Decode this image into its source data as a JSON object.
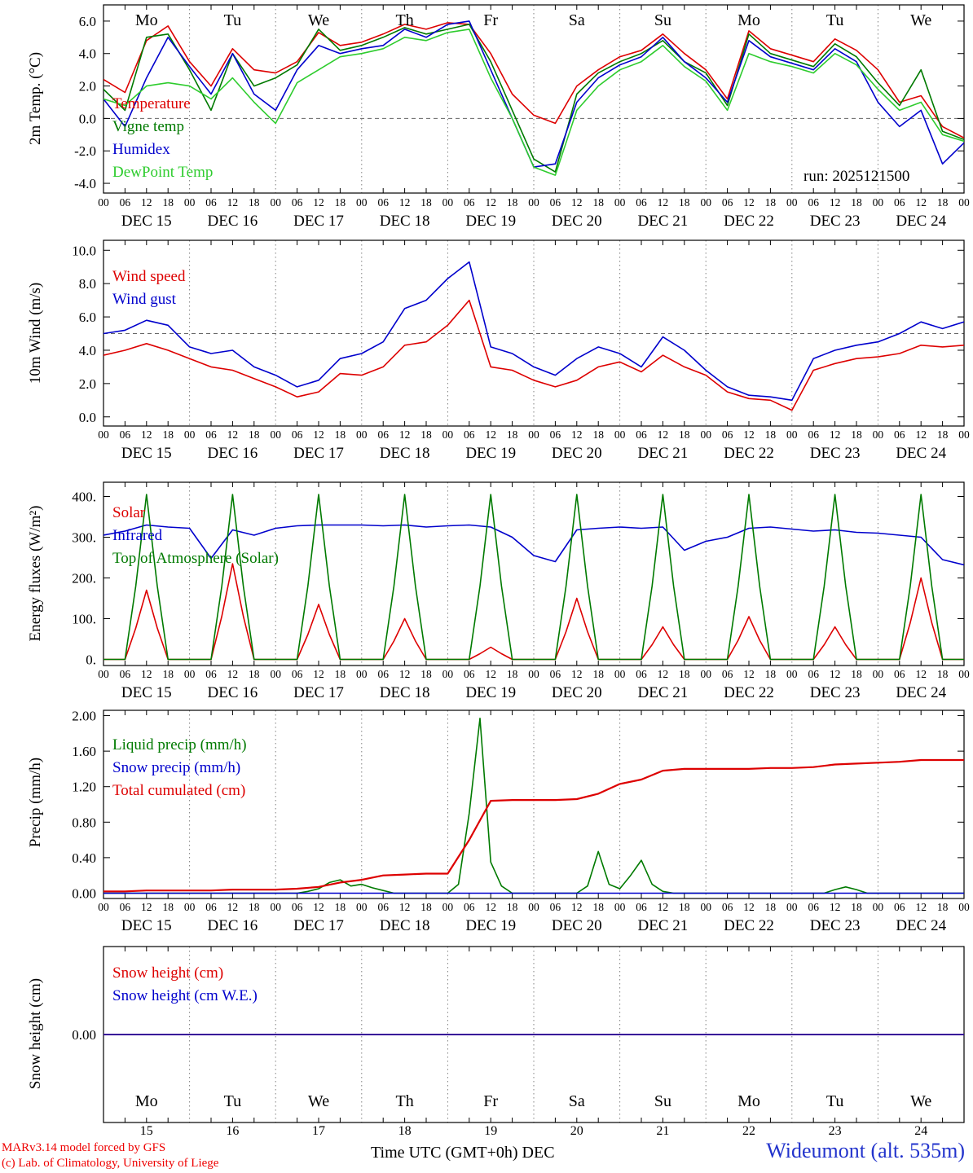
{
  "page": {
    "run_label": "run: 2025121500",
    "footer_left1": "MARv3.14 model forced by GFS",
    "footer_left2": "(c) Lab. of Climatology, University of Liege",
    "footer_center": "Time UTC (GMT+0h) DEC",
    "footer_right": "Wideumont (alt. 535m)"
  },
  "colors": {
    "red": "#dd0000",
    "dark_green": "#007a00",
    "blue": "#0000cc",
    "light_green": "#2ecc2e",
    "weekend": "#ee2200",
    "footer_blue": "#2233cc",
    "footer_red": "#ee0000"
  },
  "axis": {
    "hour_labels": [
      "00",
      "06",
      "12",
      "18"
    ],
    "day_labels": [
      "DEC 15",
      "DEC 16",
      "DEC 17",
      "DEC 18",
      "DEC 19",
      "DEC 20",
      "DEC 21",
      "DEC 22",
      "DEC 23",
      "DEC 24"
    ],
    "day_abbrev": [
      "Mo",
      "Tu",
      "We",
      "Th",
      "Fr",
      "Sa",
      "Su",
      "Mo",
      "Tu",
      "We"
    ],
    "weekend_indices": [
      5,
      6
    ],
    "dates": [
      "15",
      "16",
      "17",
      "18",
      "19",
      "20",
      "21",
      "22",
      "23",
      "24"
    ],
    "x_hours_span": 240
  },
  "chart_data": [
    {
      "type": "line",
      "ylabel": "2m Temp. (°C)",
      "ylim": [
        -4.6,
        7.0
      ],
      "yticks": [
        {
          "v": 6,
          "label": "6.0"
        },
        {
          "v": 4,
          "label": "4.0"
        },
        {
          "v": 2,
          "label": "2.0"
        },
        {
          "v": 0,
          "label": "0.0"
        },
        {
          "v": -2,
          "label": "-2.0"
        },
        {
          "v": -4,
          "label": "-4.0"
        }
      ],
      "dashed_hlines": [
        0
      ],
      "series": [
        {
          "name": "Temperature",
          "color": "#dd0000",
          "step_h": 6,
          "values": [
            2.4,
            1.6,
            4.8,
            5.7,
            3.5,
            2.0,
            4.3,
            3.0,
            2.8,
            3.5,
            5.3,
            4.5,
            4.7,
            5.2,
            5.8,
            5.5,
            5.9,
            5.8,
            4.0,
            1.5,
            0.2,
            -0.3,
            2.0,
            3.0,
            3.8,
            4.2,
            5.2,
            4.0,
            3.0,
            1.2,
            5.4,
            4.3,
            3.9,
            3.5,
            4.9,
            4.2,
            3.0,
            1.0,
            1.4,
            -0.5,
            -1.2
          ]
        },
        {
          "name": "Vigne temp",
          "color": "#007a00",
          "step_h": 6,
          "values": [
            1.8,
            0.5,
            5.0,
            5.2,
            3.0,
            0.5,
            4.0,
            2.0,
            2.5,
            3.3,
            5.5,
            4.2,
            4.5,
            5.0,
            5.6,
            5.2,
            5.5,
            5.8,
            3.5,
            0.5,
            -2.5,
            -3.3,
            1.5,
            2.8,
            3.5,
            4.0,
            4.8,
            3.5,
            2.8,
            0.8,
            5.2,
            4.0,
            3.6,
            3.2,
            4.6,
            3.8,
            2.2,
            0.8,
            3.0,
            -0.8,
            -1.3
          ]
        },
        {
          "name": "Humidex",
          "color": "#0000cc",
          "step_h": 6,
          "values": [
            1.2,
            -0.5,
            2.5,
            5.0,
            3.2,
            1.5,
            4.0,
            1.5,
            0.5,
            3.0,
            4.5,
            4.0,
            4.3,
            4.5,
            5.5,
            5.0,
            5.8,
            6.0,
            3.0,
            0.0,
            -3.0,
            -2.8,
            1.0,
            2.5,
            3.3,
            3.8,
            5.0,
            3.5,
            2.5,
            1.0,
            4.8,
            3.8,
            3.4,
            3.0,
            4.3,
            3.5,
            1.0,
            -0.5,
            0.5,
            -2.8,
            -1.5
          ]
        },
        {
          "name": "DewPoint Temp",
          "color": "#2ecc2e",
          "step_h": 6,
          "values": [
            1.2,
            0.8,
            2.0,
            2.2,
            2.0,
            1.2,
            2.5,
            1.0,
            -0.3,
            2.2,
            3.0,
            3.8,
            4.0,
            4.3,
            5.0,
            4.8,
            5.3,
            5.5,
            2.5,
            0.0,
            -3.0,
            -3.5,
            0.5,
            2.0,
            3.0,
            3.5,
            4.5,
            3.2,
            2.3,
            0.5,
            4.0,
            3.5,
            3.2,
            2.8,
            4.0,
            3.3,
            1.8,
            0.5,
            1.0,
            -1.0,
            -1.4
          ]
        }
      ]
    },
    {
      "type": "line",
      "ylabel": "10m Wind (m/s)",
      "ylim": [
        -0.55,
        10.6
      ],
      "yticks": [
        {
          "v": 10,
          "label": "10.0"
        },
        {
          "v": 8,
          "label": "8.0"
        },
        {
          "v": 6,
          "label": "6.0"
        },
        {
          "v": 4,
          "label": "4.0"
        },
        {
          "v": 2,
          "label": "2.0"
        },
        {
          "v": 0,
          "label": "0.0"
        }
      ],
      "dashed_hlines": [
        5
      ],
      "series": [
        {
          "name": "Wind speed",
          "color": "#dd0000",
          "step_h": 6,
          "values": [
            3.7,
            4.0,
            4.4,
            4.0,
            3.5,
            3.0,
            2.8,
            2.3,
            1.8,
            1.2,
            1.5,
            2.6,
            2.5,
            3.0,
            4.3,
            4.5,
            5.5,
            7.0,
            3.0,
            2.8,
            2.2,
            1.8,
            2.2,
            3.0,
            3.3,
            2.7,
            3.7,
            3.0,
            2.5,
            1.5,
            1.1,
            1.0,
            0.4,
            2.8,
            3.2,
            3.5,
            3.6,
            3.8,
            4.3,
            4.2,
            4.3
          ]
        },
        {
          "name": "Wind gust",
          "color": "#0000cc",
          "step_h": 6,
          "values": [
            5.0,
            5.2,
            5.8,
            5.5,
            4.2,
            3.8,
            4.0,
            3.0,
            2.5,
            1.8,
            2.2,
            3.5,
            3.8,
            4.5,
            6.5,
            7.0,
            8.3,
            9.3,
            4.2,
            3.8,
            3.0,
            2.5,
            3.5,
            4.2,
            3.8,
            3.0,
            4.8,
            4.0,
            2.8,
            1.8,
            1.3,
            1.2,
            1.0,
            3.5,
            4.0,
            4.3,
            4.5,
            5.0,
            5.7,
            5.3,
            5.7
          ]
        }
      ]
    },
    {
      "type": "line",
      "ylabel": "Energy fluxes (W/m²)",
      "ylim": [
        -15,
        435
      ],
      "yticks": [
        {
          "v": 400,
          "label": "400."
        },
        {
          "v": 300,
          "label": "300."
        },
        {
          "v": 200,
          "label": "200."
        },
        {
          "v": 100,
          "label": "100."
        },
        {
          "v": 0,
          "label": "0."
        }
      ],
      "dashed_hlines": [],
      "series": [
        {
          "name": "Solar",
          "color": "#dd0000",
          "step_h": 3,
          "values": [
            0,
            0,
            0,
            77,
            170,
            77,
            0,
            0,
            0,
            0,
            0,
            106,
            235,
            106,
            0,
            0,
            0,
            0,
            0,
            61,
            135,
            61,
            0,
            0,
            0,
            0,
            0,
            45,
            100,
            45,
            0,
            0,
            0,
            0,
            0,
            14,
            30,
            14,
            0,
            0,
            0,
            0,
            0,
            68,
            150,
            68,
            0,
            0,
            0,
            0,
            0,
            36,
            80,
            36,
            0,
            0,
            0,
            0,
            0,
            47,
            105,
            47,
            0,
            0,
            0,
            0,
            0,
            36,
            80,
            36,
            0,
            0,
            0,
            0,
            0,
            90,
            200,
            90,
            0,
            0,
            0
          ]
        },
        {
          "name": "Infrared",
          "color": "#0000cc",
          "step_h": 6,
          "values": [
            305,
            315,
            330,
            325,
            322,
            248,
            318,
            305,
            322,
            328,
            330,
            330,
            330,
            328,
            330,
            325,
            328,
            330,
            325,
            300,
            255,
            240,
            318,
            322,
            325,
            322,
            325,
            268,
            290,
            300,
            322,
            325,
            320,
            315,
            318,
            312,
            310,
            305,
            300,
            245,
            232
          ]
        },
        {
          "name": "Top of Atmosphere (Solar)",
          "color": "#007a00",
          "step_h": 3,
          "values": [
            0,
            0,
            0,
            180,
            405,
            180,
            0,
            0,
            0,
            0,
            0,
            180,
            405,
            180,
            0,
            0,
            0,
            0,
            0,
            180,
            405,
            180,
            0,
            0,
            0,
            0,
            0,
            180,
            405,
            180,
            0,
            0,
            0,
            0,
            0,
            180,
            405,
            180,
            0,
            0,
            0,
            0,
            0,
            180,
            405,
            180,
            0,
            0,
            0,
            0,
            0,
            180,
            405,
            180,
            0,
            0,
            0,
            0,
            0,
            180,
            405,
            180,
            0,
            0,
            0,
            0,
            0,
            180,
            405,
            180,
            0,
            0,
            0,
            0,
            0,
            180,
            405,
            180,
            0,
            0,
            0
          ]
        }
      ]
    },
    {
      "type": "line",
      "ylabel": "Precip (mm/h)",
      "ylim": [
        -0.06,
        2.06
      ],
      "yticks": [
        {
          "v": 2.0,
          "label": "2.00"
        },
        {
          "v": 1.6,
          "label": "1.60"
        },
        {
          "v": 1.2,
          "label": "1.20"
        },
        {
          "v": 0.8,
          "label": "0.80"
        },
        {
          "v": 0.4,
          "label": "0.40"
        },
        {
          "v": 0.0,
          "label": "0.00"
        }
      ],
      "dashed_hlines": [],
      "series": [
        {
          "name": "Liquid precip (mm/h)",
          "color": "#007a00",
          "step_h": 3,
          "values": [
            0,
            0,
            0,
            0,
            0,
            0,
            0,
            0,
            0,
            0,
            0,
            0,
            0,
            0,
            0,
            0,
            0,
            0,
            0,
            0.02,
            0.05,
            0.12,
            0.15,
            0.08,
            0.1,
            0.06,
            0.03,
            0,
            0,
            0,
            0,
            0,
            0,
            0.1,
            0.9,
            1.97,
            0.35,
            0.08,
            0,
            0,
            0,
            0,
            0,
            0,
            0,
            0.08,
            0.47,
            0.1,
            0.05,
            0.2,
            0.37,
            0.1,
            0.02,
            0,
            0,
            0,
            0,
            0,
            0,
            0,
            0,
            0,
            0,
            0,
            0,
            0,
            0,
            0,
            0.04,
            0.07,
            0.04,
            0,
            0,
            0,
            0,
            0,
            0,
            0,
            0,
            0,
            0
          ]
        },
        {
          "name": "Snow precip (mm/h)",
          "color": "#0000cc",
          "step_h": 6,
          "values": [
            0,
            0,
            0,
            0,
            0,
            0,
            0,
            0,
            0,
            0,
            0,
            0,
            0,
            0,
            0,
            0,
            0,
            0,
            0,
            0,
            0,
            0,
            0,
            0,
            0,
            0,
            0,
            0,
            0,
            0,
            0,
            0,
            0,
            0,
            0,
            0,
            0,
            0,
            0,
            0,
            0
          ]
        },
        {
          "name": "Total cumulated (cm)",
          "color": "#dd0000",
          "width": 2.2,
          "step_h": 6,
          "values": [
            0.02,
            0.02,
            0.03,
            0.03,
            0.03,
            0.03,
            0.04,
            0.04,
            0.04,
            0.05,
            0.07,
            0.12,
            0.15,
            0.2,
            0.21,
            0.22,
            0.22,
            0.6,
            1.04,
            1.05,
            1.05,
            1.05,
            1.06,
            1.12,
            1.23,
            1.28,
            1.38,
            1.4,
            1.4,
            1.4,
            1.4,
            1.41,
            1.41,
            1.42,
            1.45,
            1.46,
            1.47,
            1.48,
            1.5,
            1.5,
            1.5
          ]
        }
      ]
    },
    {
      "type": "line",
      "ylabel": "Snow height (cm)",
      "ylim": [
        -1,
        1
      ],
      "yticks": [
        {
          "v": 0,
          "label": "0.00"
        }
      ],
      "dashed_hlines": [],
      "series": [
        {
          "name": "Snow height (cm)",
          "color": "#dd0000",
          "width": 2,
          "step_h": 6,
          "values": [
            0,
            0,
            0,
            0,
            0,
            0,
            0,
            0,
            0,
            0,
            0,
            0,
            0,
            0,
            0,
            0,
            0,
            0,
            0,
            0,
            0,
            0,
            0,
            0,
            0,
            0,
            0,
            0,
            0,
            0,
            0,
            0,
            0,
            0,
            0,
            0,
            0,
            0,
            0,
            0,
            0
          ]
        },
        {
          "name": "Snow height (cm W.E.)",
          "color": "#0000cc",
          "step_h": 6,
          "values": [
            0,
            0,
            0,
            0,
            0,
            0,
            0,
            0,
            0,
            0,
            0,
            0,
            0,
            0,
            0,
            0,
            0,
            0,
            0,
            0,
            0,
            0,
            0,
            0,
            0,
            0,
            0,
            0,
            0,
            0,
            0,
            0,
            0,
            0,
            0,
            0,
            0,
            0,
            0,
            0,
            0
          ]
        }
      ]
    }
  ]
}
